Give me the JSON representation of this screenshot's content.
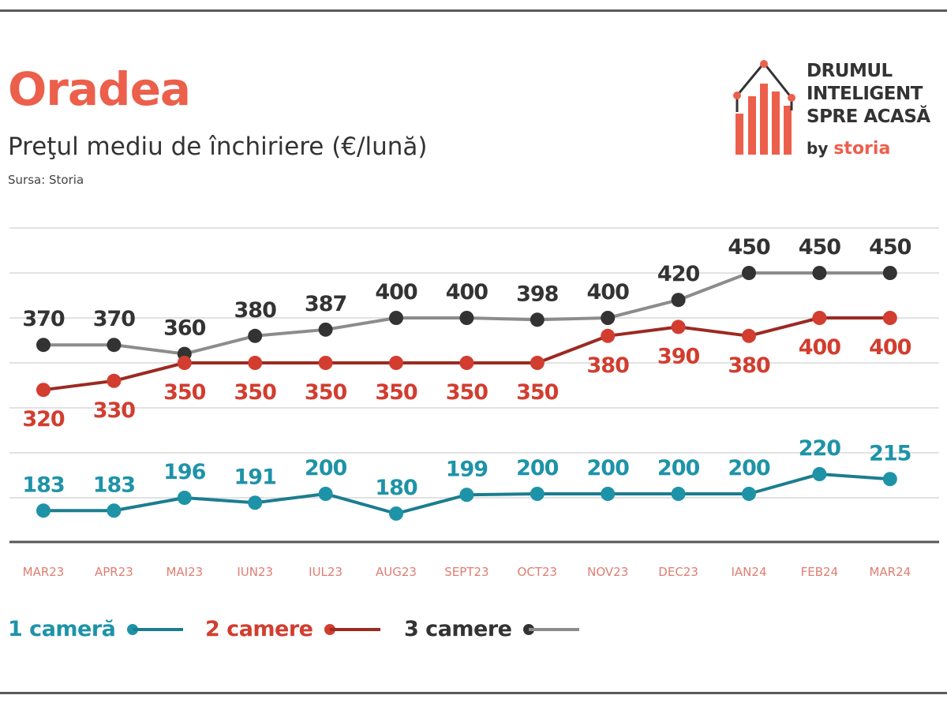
{
  "header": {
    "title": "Oradea",
    "subtitle": "Preţul mediu de închiriere (€/lună)",
    "source": "Sursa: Storia"
  },
  "logo": {
    "line1": "DRUMUL",
    "line2": "INTELIGENT",
    "line3": "SPRE ACASĂ",
    "by": "by",
    "brand": "storia"
  },
  "colors": {
    "title": "#ec5f4b",
    "one_room": "#1e93a8",
    "two_rooms": "#d23d2f",
    "two_rooms_line": "#9b2a22",
    "three_rooms_dot": "#333333",
    "three_rooms_line": "#8c8c8c",
    "axis_label": "#e07d72",
    "grid": "#e2e2e2"
  },
  "chart_data": {
    "type": "line",
    "title": "Preţul mediu de închiriere (€/lună)",
    "xlabel": "",
    "ylabel": "",
    "grid": true,
    "legend_position": "bottom-left",
    "categories": [
      "MAR23",
      "APR23",
      "MAI23",
      "IUN23",
      "IUL23",
      "AUG23",
      "SEPT23",
      "OCT23",
      "NOV23",
      "DEC23",
      "IAN24",
      "FEB24",
      "MAR24"
    ],
    "series": [
      {
        "name": "1 cameră",
        "values": [
          183,
          183,
          196,
          191,
          200,
          180,
          199,
          200,
          200,
          200,
          200,
          220,
          215
        ]
      },
      {
        "name": "2 camere",
        "values": [
          320,
          330,
          350,
          350,
          350,
          350,
          350,
          350,
          380,
          390,
          380,
          400,
          400
        ]
      },
      {
        "name": "3 camere",
        "values": [
          370,
          370,
          360,
          380,
          387,
          400,
          400,
          398,
          400,
          420,
          450,
          450,
          450
        ]
      }
    ]
  }
}
